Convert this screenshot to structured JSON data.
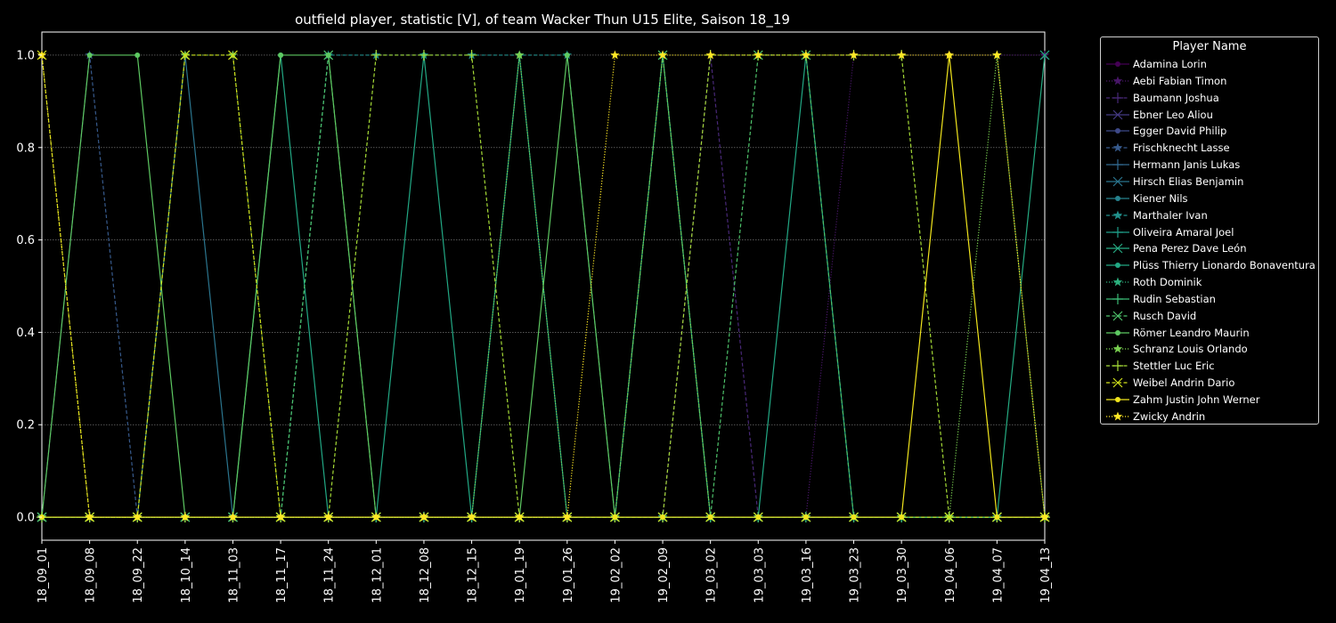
{
  "chart_data": {
    "type": "line",
    "title": "outfield player, statistic [V], of team Wacker Thun U15 Elite, Saison 18_19",
    "xlabel": "",
    "ylabel": "",
    "ylim": [
      -0.05,
      1.05
    ],
    "yticks": [
      0.0,
      0.2,
      0.4,
      0.6,
      0.8,
      1.0
    ],
    "ytick_labels": [
      "0.0",
      "0.2",
      "0.4",
      "0.6",
      "0.8",
      "1.0"
    ],
    "grid": true,
    "legend_title": "Player Name",
    "legend_position": "outside-right",
    "categories": [
      "18_09_01",
      "18_09_08",
      "18_09_22",
      "18_10_14",
      "18_11_03",
      "18_11_17",
      "18_11_24",
      "18_12_01",
      "18_12_08",
      "18_12_15",
      "19_01_19",
      "19_01_26",
      "19_02_02",
      "19_02_09",
      "19_03_02",
      "19_03_03",
      "19_03_16",
      "19_03_23",
      "19_03_30",
      "19_04_06",
      "19_04_07",
      "19_04_13"
    ],
    "series": [
      {
        "name": "Adamina Lorin",
        "color": "#440154",
        "marker": "circle",
        "linestyle": "solid",
        "values": [
          0,
          0,
          0,
          0,
          0,
          0,
          0,
          0,
          0,
          0,
          0,
          0,
          0,
          0,
          0,
          0,
          0,
          0,
          0,
          0,
          0,
          0
        ]
      },
      {
        "name": "Aebi Fabian Timon",
        "color": "#481668",
        "marker": "star",
        "linestyle": "dotted",
        "values": [
          0,
          0,
          0,
          0,
          0,
          0,
          0,
          0,
          0,
          0,
          0,
          0,
          0,
          0,
          0,
          0,
          0,
          1,
          1,
          1,
          1,
          1
        ]
      },
      {
        "name": "Baumann Joshua",
        "color": "#482878",
        "marker": "plus",
        "linestyle": "dashed",
        "values": [
          0,
          0,
          0,
          0,
          0,
          0,
          0,
          0,
          0,
          0,
          0,
          0,
          0,
          0,
          1,
          0,
          0,
          0,
          0,
          0,
          0,
          0
        ]
      },
      {
        "name": "Ebner Leo Aliou",
        "color": "#443983",
        "marker": "x",
        "linestyle": "solid",
        "values": [
          0,
          0,
          0,
          0,
          0,
          0,
          0,
          0,
          0,
          0,
          0,
          0,
          0,
          0,
          0,
          0,
          0,
          0,
          0,
          0,
          0,
          0
        ]
      },
      {
        "name": "Egger David Philip",
        "color": "#3e4989",
        "marker": "circle",
        "linestyle": "solid",
        "values": [
          0,
          0,
          0,
          0,
          0,
          0,
          0,
          0,
          0,
          0,
          0,
          0,
          0,
          0,
          0,
          0,
          0,
          0,
          0,
          0,
          0,
          0
        ]
      },
      {
        "name": "Frischknecht Lasse",
        "color": "#375a8c",
        "marker": "star",
        "linestyle": "dashed",
        "values": [
          0,
          1,
          0,
          0,
          0,
          0,
          0,
          0,
          0,
          0,
          0,
          0,
          0,
          0,
          0,
          0,
          0,
          0,
          0,
          0,
          0,
          0
        ]
      },
      {
        "name": "Hermann Janis Lukas",
        "color": "#31688e",
        "marker": "plus",
        "linestyle": "solid",
        "values": [
          0,
          0,
          0,
          0,
          0,
          0,
          0,
          0,
          0,
          0,
          0,
          0,
          0,
          0,
          0,
          0,
          0,
          0,
          0,
          0,
          0,
          0
        ]
      },
      {
        "name": "Hirsch Elias Benjamin",
        "color": "#2b758e",
        "marker": "x",
        "linestyle": "solid",
        "values": [
          0,
          0,
          0,
          1,
          0,
          0,
          0,
          0,
          0,
          0,
          0,
          0,
          0,
          0,
          0,
          0,
          0,
          0,
          0,
          0,
          0,
          0
        ]
      },
      {
        "name": "Kiener Nils",
        "color": "#26828e",
        "marker": "circle",
        "linestyle": "solid",
        "values": [
          0,
          0,
          0,
          0,
          0,
          0,
          0,
          0,
          0,
          0,
          0,
          0,
          0,
          0,
          0,
          0,
          0,
          0,
          0,
          0,
          0,
          0
        ]
      },
      {
        "name": "Marthaler Ivan",
        "color": "#21918c",
        "marker": "star",
        "linestyle": "dashed",
        "values": [
          0,
          0,
          0,
          0,
          0,
          0,
          1,
          1,
          1,
          1,
          1,
          1,
          0,
          0,
          0,
          0,
          0,
          0,
          0,
          0,
          0,
          0
        ]
      },
      {
        "name": "Oliveira Amaral Joel",
        "color": "#1f9e89",
        "marker": "plus",
        "linestyle": "solid",
        "values": [
          0,
          0,
          0,
          0,
          0,
          0,
          0,
          0,
          0,
          0,
          0,
          0,
          0,
          0,
          0,
          0,
          0,
          0,
          0,
          0,
          0,
          0
        ]
      },
      {
        "name": "Pena Perez Dave León",
        "color": "#25ab82",
        "marker": "x",
        "linestyle": "solid",
        "values": [
          0,
          0,
          0,
          0,
          0,
          0,
          0,
          0,
          0,
          0,
          0,
          0,
          0,
          0,
          0,
          0,
          0,
          0,
          0,
          0,
          0,
          1
        ]
      },
      {
        "name": "Plüss Thierry Lionardo Bonaventura",
        "color": "#22a884",
        "marker": "circle",
        "linestyle": "solid",
        "values": [
          0,
          0,
          0,
          0,
          0,
          1,
          0,
          0,
          1,
          0,
          1,
          0,
          0,
          1,
          0,
          0,
          1,
          0,
          0,
          0,
          0,
          0
        ]
      },
      {
        "name": "Roth Dominik",
        "color": "#2cb17e",
        "marker": "star",
        "linestyle": "dotted",
        "values": [
          0,
          0,
          0,
          0,
          0,
          0,
          0,
          0,
          0,
          0,
          0,
          0,
          0,
          0,
          0,
          0,
          0,
          0,
          0,
          0,
          0,
          0
        ]
      },
      {
        "name": "Rudin Sebastian",
        "color": "#3bbb75",
        "marker": "plus",
        "linestyle": "solid",
        "values": [
          0,
          0,
          0,
          0,
          0,
          0,
          0,
          0,
          0,
          0,
          0,
          0,
          0,
          0,
          0,
          0,
          0,
          0,
          0,
          0,
          0,
          0
        ]
      },
      {
        "name": "Rusch David",
        "color": "#4ec36b",
        "marker": "x",
        "linestyle": "dashed",
        "values": [
          0,
          0,
          0,
          0,
          0,
          0,
          1,
          0,
          0,
          0,
          0,
          0,
          0,
          1,
          0,
          1,
          1,
          0,
          0,
          0,
          0,
          0
        ]
      },
      {
        "name": "Römer Leandro Maurin",
        "color": "#5ec962",
        "marker": "circle",
        "linestyle": "solid",
        "values": [
          0,
          1,
          1,
          0,
          0,
          1,
          1,
          0,
          0,
          0,
          0,
          1,
          0,
          0,
          0,
          0,
          0,
          0,
          0,
          0,
          0,
          0
        ]
      },
      {
        "name": "Schranz Louis Orlando",
        "color": "#7ad151",
        "marker": "star",
        "linestyle": "dotted",
        "values": [
          0,
          0,
          0,
          1,
          1,
          0,
          0,
          0,
          0,
          0,
          1,
          0,
          0,
          1,
          0,
          0,
          0,
          0,
          0,
          0,
          1,
          0
        ]
      },
      {
        "name": "Stettler Luc Eric",
        "color": "#a5db36",
        "marker": "plus",
        "linestyle": "dashed",
        "values": [
          0,
          0,
          0,
          0,
          0,
          0,
          0,
          1,
          1,
          1,
          0,
          0,
          0,
          0,
          1,
          1,
          1,
          1,
          1,
          0,
          0,
          0
        ]
      },
      {
        "name": "Weibel Andrin Dario",
        "color": "#d2e21b",
        "marker": "x",
        "linestyle": "dashed",
        "values": [
          1,
          0,
          0,
          1,
          1,
          0,
          0,
          0,
          0,
          0,
          0,
          0,
          0,
          0,
          0,
          0,
          0,
          0,
          0,
          0,
          0,
          0
        ]
      },
      {
        "name": "Zahm Justin John Werner",
        "color": "#f1e51d",
        "marker": "circle",
        "linestyle": "solid",
        "values": [
          0,
          0,
          0,
          0,
          0,
          0,
          0,
          0,
          0,
          0,
          0,
          0,
          0,
          0,
          0,
          0,
          0,
          0,
          0,
          1,
          0,
          0
        ]
      },
      {
        "name": "Zwicky Andrin",
        "color": "#fde725",
        "marker": "star",
        "linestyle": "dotted",
        "values": [
          1,
          0,
          0,
          0,
          0,
          0,
          0,
          0,
          0,
          0,
          0,
          0,
          1,
          1,
          1,
          1,
          1,
          1,
          1,
          1,
          1,
          0
        ]
      }
    ]
  }
}
